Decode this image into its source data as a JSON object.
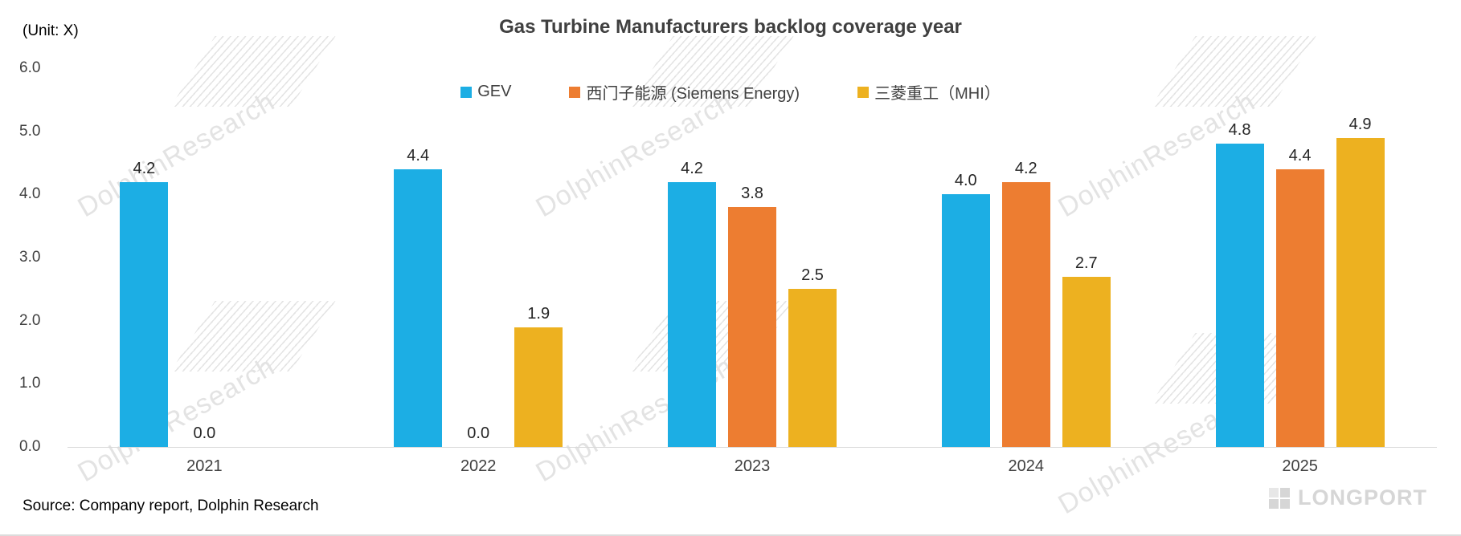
{
  "unit_label": "(Unit: X)",
  "title": "Gas Turbine Manufacturers backlog coverage year",
  "source": "Source: Company report, Dolphin Research",
  "watermark": "DolphinResearch",
  "logo_text": "LONGPORT",
  "chart_data": {
    "type": "bar",
    "categories": [
      "2021",
      "2022",
      "2023",
      "2024",
      "2025"
    ],
    "series": [
      {
        "name": "GEV",
        "color": "#1CAEE4",
        "values": [
          4.2,
          4.4,
          4.2,
          4.0,
          4.8
        ]
      },
      {
        "name": "西门子能源 (Siemens Energy)",
        "color": "#ED7D31",
        "values": [
          0.0,
          0.0,
          3.8,
          4.2,
          4.4
        ]
      },
      {
        "name": "三菱重工（MHI）",
        "color": "#EDB120",
        "values": [
          null,
          1.9,
          2.5,
          2.7,
          4.9
        ]
      }
    ],
    "ylim": [
      0,
      6
    ],
    "yticks": [
      "6.0",
      "5.0",
      "4.0",
      "3.0",
      "2.0",
      "1.0",
      "0.0"
    ],
    "grid": false,
    "legend_position": "top",
    "value_labels": true
  }
}
